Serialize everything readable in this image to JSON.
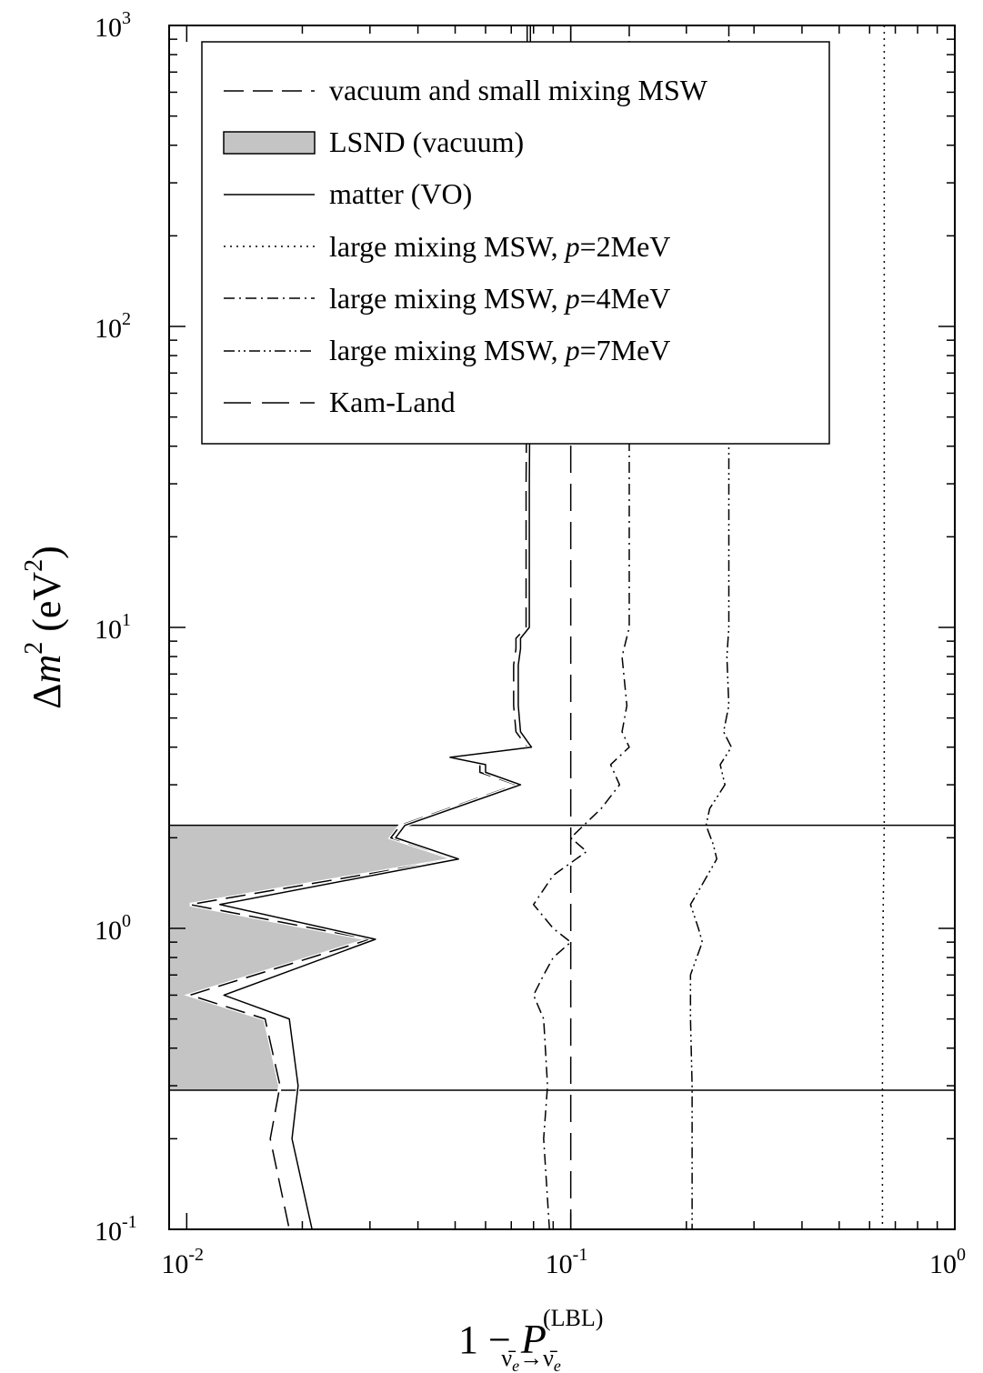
{
  "chart_data": {
    "type": "line",
    "xlabel": {
      "prefix": "1 − ",
      "symbol": "P",
      "superscript": "(LBL)",
      "subscript_from": "ν̄",
      "subscript_from_sub": "e",
      "arrow": "→",
      "subscript_to": "ν̄",
      "subscript_to_sub": "e"
    },
    "ylabel": {
      "delta": "Δ",
      "m": "m",
      "m_exp": "2",
      "unit_open": " (eV",
      "unit_exp": "2",
      "unit_close": ")"
    },
    "xscale": "log",
    "yscale": "log",
    "xlim": [
      0.009,
      1.0
    ],
    "ylim": [
      0.1,
      1000
    ],
    "grid": false,
    "legend_position": "top-left",
    "x_ticks": [
      {
        "value": 0.01,
        "base": "10",
        "exp": "-2"
      },
      {
        "value": 0.1,
        "base": "10",
        "exp": "-1"
      },
      {
        "value": 1,
        "base": "10",
        "exp": "0"
      }
    ],
    "y_ticks": [
      {
        "value": 0.1,
        "base": "10",
        "exp": "-1"
      },
      {
        "value": 1,
        "base": "10",
        "exp": "0"
      },
      {
        "value": 10,
        "base": "10",
        "exp": "1"
      },
      {
        "value": 100,
        "base": "10",
        "exp": "2"
      },
      {
        "value": 1000,
        "base": "10",
        "exp": "3"
      }
    ],
    "lsnd_band": {
      "name": "LSND (vacuum)",
      "fill": "#c4c4c4",
      "y_range": [
        0.29,
        2.2
      ],
      "boundary": {
        "x": [
          0.036,
          0.034,
          0.05,
          0.0102,
          0.03,
          0.0102,
          0.016,
          0.0175
        ],
        "y": [
          2.2,
          2.0,
          1.7,
          1.2,
          0.92,
          0.6,
          0.5,
          0.29
        ]
      }
    },
    "series": [
      {
        "name": "vacuum and small mixing MSW",
        "dash": "22,10",
        "points": [
          [
            0.077,
            1000
          ],
          [
            0.077,
            100
          ],
          [
            0.0765,
            30
          ],
          [
            0.0765,
            10
          ],
          [
            0.072,
            9.2
          ],
          [
            0.072,
            8.5
          ],
          [
            0.071,
            7.5
          ],
          [
            0.071,
            5.5
          ],
          [
            0.072,
            4.5
          ],
          [
            0.077,
            4.0
          ],
          [
            0.0475,
            3.7
          ],
          [
            0.058,
            3.5
          ],
          [
            0.058,
            3.3
          ],
          [
            0.072,
            3.0
          ],
          [
            0.036,
            2.2
          ],
          [
            0.034,
            2.0
          ],
          [
            0.05,
            1.7
          ],
          [
            0.0102,
            1.2
          ],
          [
            0.03,
            0.92
          ],
          [
            0.0102,
            0.6
          ],
          [
            0.016,
            0.5
          ],
          [
            0.0175,
            0.3
          ],
          [
            0.0165,
            0.2
          ],
          [
            0.0185,
            0.1
          ]
        ]
      },
      {
        "name": "matter (VO)",
        "dash": "",
        "points": [
          [
            0.0785,
            1000
          ],
          [
            0.0785,
            100
          ],
          [
            0.078,
            30
          ],
          [
            0.078,
            10
          ],
          [
            0.074,
            9.2
          ],
          [
            0.074,
            8.5
          ],
          [
            0.073,
            7.5
          ],
          [
            0.073,
            5.5
          ],
          [
            0.074,
            4.5
          ],
          [
            0.079,
            4.0
          ],
          [
            0.0485,
            3.7
          ],
          [
            0.06,
            3.5
          ],
          [
            0.06,
            3.3
          ],
          [
            0.074,
            3.0
          ],
          [
            0.037,
            2.2
          ],
          [
            0.035,
            2.0
          ],
          [
            0.051,
            1.7
          ],
          [
            0.0122,
            1.2
          ],
          [
            0.031,
            0.92
          ],
          [
            0.0125,
            0.6
          ],
          [
            0.0185,
            0.5
          ],
          [
            0.0195,
            0.3
          ],
          [
            0.0188,
            0.2
          ],
          [
            0.0212,
            0.1
          ]
        ]
      },
      {
        "name": "large mixing MSW, p=2MeV",
        "name_prefix": "large mixing MSW, ",
        "name_var": "p",
        "name_suffix": "=2MeV",
        "dash": "2,5",
        "points": [
          [
            0.655,
            1000
          ],
          [
            0.655,
            2.2
          ],
          [
            0.65,
            1.0
          ],
          [
            0.648,
            0.3
          ],
          [
            0.648,
            0.1
          ]
        ]
      },
      {
        "name": "large mixing MSW, p=4MeV",
        "name_prefix": "large mixing MSW, ",
        "name_var": "p",
        "name_suffix": "=4MeV",
        "dash": "12,5,2,5",
        "points": [
          [
            0.142,
            1000
          ],
          [
            0.142,
            30
          ],
          [
            0.142,
            10
          ],
          [
            0.136,
            8.0
          ],
          [
            0.14,
            5.5
          ],
          [
            0.136,
            4.5
          ],
          [
            0.142,
            4.0
          ],
          [
            0.127,
            3.5
          ],
          [
            0.134,
            3.0
          ],
          [
            0.12,
            2.5
          ],
          [
            0.1,
            2.0
          ],
          [
            0.11,
            1.8
          ],
          [
            0.09,
            1.5
          ],
          [
            0.08,
            1.2
          ],
          [
            0.09,
            1.0
          ],
          [
            0.1,
            0.9
          ],
          [
            0.09,
            0.8
          ],
          [
            0.085,
            0.7
          ],
          [
            0.08,
            0.6
          ],
          [
            0.085,
            0.5
          ],
          [
            0.087,
            0.3
          ],
          [
            0.085,
            0.2
          ],
          [
            0.088,
            0.1
          ]
        ]
      },
      {
        "name": "large mixing MSW, p=7MeV",
        "name_prefix": "large mixing MSW, ",
        "name_var": "p",
        "name_suffix": "=7MeV",
        "dash": "12,4,2,4,2,4",
        "points": [
          [
            0.258,
            1000
          ],
          [
            0.258,
            30
          ],
          [
            0.258,
            10
          ],
          [
            0.255,
            8.0
          ],
          [
            0.258,
            5.5
          ],
          [
            0.25,
            4.5
          ],
          [
            0.262,
            4.0
          ],
          [
            0.245,
            3.5
          ],
          [
            0.252,
            3.0
          ],
          [
            0.23,
            2.5
          ],
          [
            0.225,
            2.2
          ],
          [
            0.235,
            1.9
          ],
          [
            0.24,
            1.7
          ],
          [
            0.22,
            1.4
          ],
          [
            0.205,
            1.2
          ],
          [
            0.215,
            1.0
          ],
          [
            0.22,
            0.9
          ],
          [
            0.205,
            0.7
          ],
          [
            0.205,
            0.5
          ],
          [
            0.207,
            0.3
          ],
          [
            0.207,
            0.1
          ]
        ]
      },
      {
        "name": "Kam-Land",
        "dash": "30,12",
        "points": [
          [
            0.1,
            1000
          ],
          [
            0.1,
            0.1
          ]
        ]
      }
    ],
    "horizontal_lines": [
      2.2,
      0.29
    ]
  }
}
